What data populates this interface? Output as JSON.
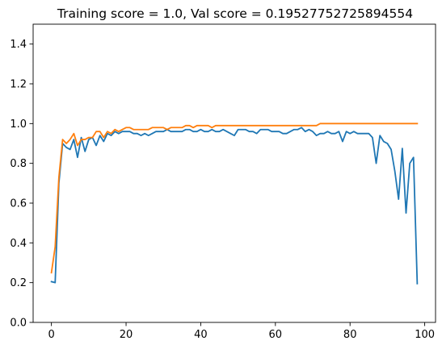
{
  "chart_data": {
    "type": "line",
    "title": "Training score = 1.0, Val score = 0.19527752725894554",
    "xlabel": "",
    "ylabel": "",
    "xlim": [
      -4.9,
      102.9
    ],
    "ylim": [
      0.0,
      1.5
    ],
    "xticks": [
      0,
      20,
      40,
      60,
      80,
      100
    ],
    "yticks": [
      0.0,
      0.2,
      0.4,
      0.6,
      0.8,
      1.0,
      1.2,
      1.4
    ],
    "grid": false,
    "legend": "none",
    "series": [
      {
        "color": "#1f77b4",
        "x": [
          0,
          1,
          2,
          3,
          4,
          5,
          6,
          7,
          8,
          9,
          10,
          11,
          12,
          13,
          14,
          15,
          16,
          17,
          18,
          19,
          20,
          21,
          22,
          23,
          24,
          25,
          26,
          27,
          28,
          29,
          30,
          31,
          32,
          33,
          34,
          35,
          36,
          37,
          38,
          39,
          40,
          41,
          42,
          43,
          44,
          45,
          46,
          47,
          48,
          49,
          50,
          51,
          52,
          53,
          54,
          55,
          56,
          57,
          58,
          59,
          60,
          61,
          62,
          63,
          64,
          65,
          66,
          67,
          68,
          69,
          70,
          71,
          72,
          73,
          74,
          75,
          76,
          77,
          78,
          79,
          80,
          81,
          82,
          83,
          84,
          85,
          86,
          87,
          88,
          89,
          90,
          91,
          92,
          93,
          94,
          95,
          96,
          97,
          98
        ],
        "y": [
          0.205,
          0.2,
          0.7,
          0.9,
          0.88,
          0.87,
          0.92,
          0.83,
          0.93,
          0.86,
          0.92,
          0.93,
          0.89,
          0.94,
          0.91,
          0.95,
          0.94,
          0.96,
          0.95,
          0.96,
          0.96,
          0.96,
          0.95,
          0.95,
          0.94,
          0.95,
          0.94,
          0.95,
          0.96,
          0.96,
          0.96,
          0.97,
          0.96,
          0.96,
          0.96,
          0.96,
          0.97,
          0.97,
          0.96,
          0.96,
          0.97,
          0.96,
          0.96,
          0.97,
          0.96,
          0.96,
          0.97,
          0.96,
          0.95,
          0.94,
          0.97,
          0.97,
          0.97,
          0.96,
          0.96,
          0.95,
          0.97,
          0.97,
          0.97,
          0.96,
          0.96,
          0.96,
          0.95,
          0.95,
          0.96,
          0.97,
          0.97,
          0.98,
          0.96,
          0.97,
          0.96,
          0.94,
          0.95,
          0.95,
          0.96,
          0.95,
          0.95,
          0.96,
          0.91,
          0.96,
          0.95,
          0.96,
          0.95,
          0.95,
          0.95,
          0.95,
          0.93,
          0.8,
          0.94,
          0.91,
          0.9,
          0.87,
          0.76,
          0.62,
          0.875,
          0.55,
          0.8,
          0.83,
          0.195
        ]
      },
      {
        "color": "#ff7f0e",
        "x": [
          0,
          1,
          2,
          3,
          4,
          5,
          6,
          7,
          8,
          9,
          10,
          11,
          12,
          13,
          14,
          15,
          16,
          17,
          18,
          19,
          20,
          21,
          22,
          23,
          24,
          25,
          26,
          27,
          28,
          29,
          30,
          31,
          32,
          33,
          34,
          35,
          36,
          37,
          38,
          39,
          40,
          41,
          42,
          43,
          44,
          45,
          46,
          47,
          48,
          49,
          50,
          51,
          52,
          53,
          54,
          55,
          56,
          57,
          58,
          59,
          60,
          61,
          62,
          63,
          64,
          65,
          66,
          67,
          68,
          69,
          70,
          71,
          72,
          73,
          74,
          75,
          76,
          77,
          78,
          79,
          80,
          81,
          82,
          83,
          84,
          85,
          86,
          87,
          88,
          89,
          90,
          91,
          92,
          93,
          94,
          95,
          96,
          97,
          98
        ],
        "y": [
          0.25,
          0.38,
          0.73,
          0.92,
          0.9,
          0.92,
          0.95,
          0.89,
          0.92,
          0.92,
          0.93,
          0.93,
          0.96,
          0.96,
          0.93,
          0.96,
          0.95,
          0.97,
          0.96,
          0.97,
          0.98,
          0.98,
          0.97,
          0.97,
          0.97,
          0.97,
          0.97,
          0.98,
          0.98,
          0.98,
          0.98,
          0.97,
          0.98,
          0.98,
          0.98,
          0.98,
          0.99,
          0.99,
          0.98,
          0.99,
          0.99,
          0.99,
          0.99,
          0.98,
          0.99,
          0.99,
          0.99,
          0.99,
          0.99,
          0.99,
          0.99,
          0.99,
          0.99,
          0.99,
          0.99,
          0.99,
          0.99,
          0.99,
          0.99,
          0.99,
          0.99,
          0.99,
          0.99,
          0.99,
          0.99,
          0.99,
          0.99,
          0.99,
          0.99,
          0.99,
          0.99,
          0.99,
          1.0,
          1.0,
          1.0,
          1.0,
          1.0,
          1.0,
          1.0,
          1.0,
          1.0,
          1.0,
          1.0,
          1.0,
          1.0,
          1.0,
          1.0,
          1.0,
          1.0,
          1.0,
          1.0,
          1.0,
          1.0,
          1.0,
          1.0,
          1.0,
          1.0,
          1.0,
          1.0
        ]
      }
    ]
  }
}
